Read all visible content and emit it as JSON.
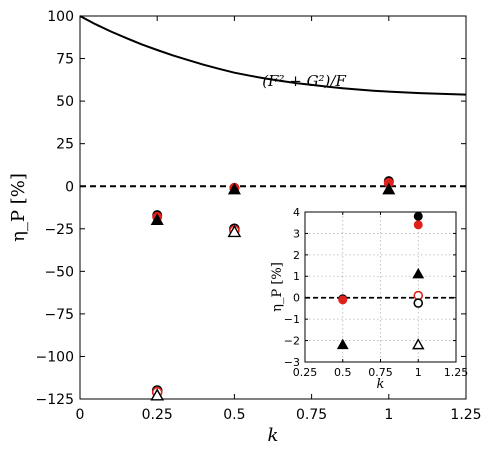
{
  "chart_data": [
    {
      "type": "scatter",
      "title": "",
      "xlabel": "k",
      "ylabel": "η_P [%]",
      "xlim": [
        0,
        1.25
      ],
      "ylim": [
        -125,
        100
      ],
      "xticks": [
        0,
        0.25,
        0.5,
        0.75,
        1,
        1.25
      ],
      "xtick_labels": [
        "0",
        "0.25",
        "0.5",
        "0.75",
        "1",
        "1.25"
      ],
      "yticks": [
        100,
        75,
        50,
        25,
        0,
        -25,
        -50,
        -75,
        -100,
        -125
      ],
      "ytick_labels": [
        "100",
        "75",
        "50",
        "25",
        "0",
        "−25",
        "−50",
        "−75",
        "−100",
        "−125"
      ],
      "grid": false,
      "curve": {
        "label": "(F² + G²)/F",
        "x": [
          0,
          0.05,
          0.1,
          0.15,
          0.2,
          0.25,
          0.3,
          0.35,
          0.4,
          0.45,
          0.5,
          0.55,
          0.6,
          0.65,
          0.7,
          0.75,
          0.8,
          0.85,
          0.9,
          0.95,
          1,
          1.05,
          1.1,
          1.15,
          1.2,
          1.25
        ],
        "y": [
          100,
          95.2,
          90.9,
          87.0,
          83.3,
          80.0,
          76.9,
          74.1,
          71.4,
          69.0,
          66.7,
          64.9,
          63.3,
          61.9,
          60.6,
          59.5,
          58.5,
          57.6,
          56.8,
          56.1,
          55.6,
          55.1,
          54.7,
          54.4,
          54.1,
          53.8
        ]
      },
      "reference_line": {
        "y": 0,
        "style": "dashed"
      },
      "series": [
        {
          "marker": "circle-filled",
          "color": "#000000",
          "x": [
            0.25,
            0.5,
            1
          ],
          "y": [
            -17,
            -1,
            3
          ]
        },
        {
          "marker": "circle-filled",
          "color": "#e0201b",
          "x": [
            0.25,
            0.5,
            1
          ],
          "y": [
            -18,
            -1,
            2
          ]
        },
        {
          "marker": "triangle-filled",
          "color": "#000000",
          "x": [
            0.25,
            0.5,
            1
          ],
          "y": [
            -20,
            -2,
            -2
          ]
        },
        {
          "marker": "circle-open",
          "color": "#000000",
          "x": [
            0.25,
            0.5
          ],
          "y": [
            -120,
            -25
          ]
        },
        {
          "marker": "circle-open",
          "color": "#e0201b",
          "x": [
            0.25,
            0.5
          ],
          "y": [
            -121,
            -26
          ]
        },
        {
          "marker": "triangle-open",
          "color": "#000000",
          "x": [
            0.25,
            0.5
          ],
          "y": [
            -123,
            -27
          ]
        }
      ]
    },
    {
      "type": "scatter",
      "title": "",
      "xlabel": "k",
      "ylabel": "η_P [%]",
      "xlim": [
        0.25,
        1.25
      ],
      "ylim": [
        -3,
        4
      ],
      "xticks": [
        0.25,
        0.5,
        0.75,
        1,
        1.25
      ],
      "xtick_labels": [
        "0.25",
        "0.5",
        "0.75",
        "1",
        "1.25"
      ],
      "yticks": [
        4,
        3,
        2,
        1,
        0,
        -1,
        -2,
        -3
      ],
      "ytick_labels": [
        "4",
        "3",
        "2",
        "1",
        "0",
        "−1",
        "−2",
        "−3"
      ],
      "grid": true,
      "reference_line": {
        "y": 0,
        "style": "dashed"
      },
      "series": [
        {
          "marker": "circle-filled",
          "color": "#000000",
          "x": [
            0.5,
            1
          ],
          "y": [
            -0.05,
            3.8
          ]
        },
        {
          "marker": "circle-filled",
          "color": "#e0201b",
          "x": [
            0.5,
            1
          ],
          "y": [
            -0.1,
            3.4
          ]
        },
        {
          "marker": "triangle-filled",
          "color": "#000000",
          "x": [
            0.5,
            1
          ],
          "y": [
            -2.2,
            1.1
          ]
        },
        {
          "marker": "circle-open",
          "color": "#e0201b",
          "x": [
            1
          ],
          "y": [
            0.1
          ]
        },
        {
          "marker": "circle-open",
          "color": "#000000",
          "x": [
            1
          ],
          "y": [
            -0.25
          ]
        },
        {
          "marker": "triangle-open",
          "color": "#000000",
          "x": [
            1
          ],
          "y": [
            -2.2
          ]
        }
      ]
    }
  ]
}
